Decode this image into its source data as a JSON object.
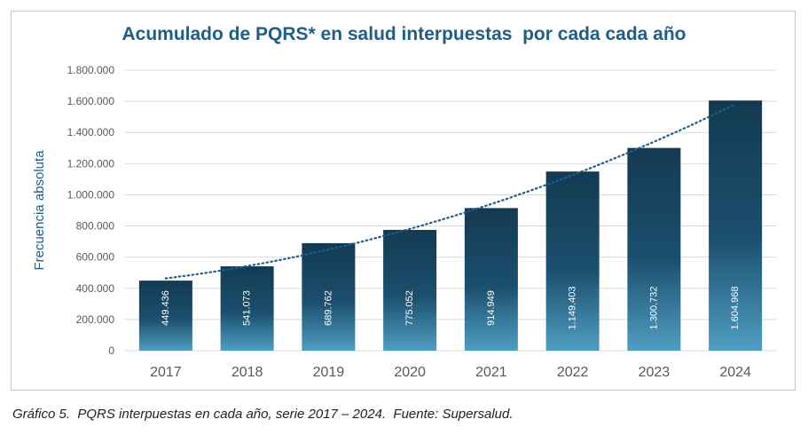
{
  "chart_data": {
    "type": "bar",
    "title": "Acumulado de PQRS* en salud interpuestas  por cada cada año",
    "xlabel": "",
    "ylabel": "Frecuencia absoluta",
    "categories": [
      "2017",
      "2018",
      "2019",
      "2020",
      "2021",
      "2022",
      "2023",
      "2024"
    ],
    "values": [
      449436,
      541073,
      689762,
      775052,
      914949,
      1149403,
      1300732,
      1604968
    ],
    "data_labels": [
      "449.436",
      "541.073",
      "689.762",
      "775.052",
      "914.949",
      "1.149.403",
      "1.300.732",
      "1.604.968"
    ],
    "ylim": [
      0,
      1800000
    ],
    "yticks": [
      0,
      200000,
      400000,
      600000,
      800000,
      1000000,
      1200000,
      1400000,
      1600000,
      1800000
    ],
    "ytick_labels": [
      "0",
      "200.000",
      "400.000",
      "600.000",
      "800.000",
      "1.000.000",
      "1.200.000",
      "1.400.000",
      "1.600.000",
      "1.800.000"
    ],
    "trendline": "polynomial dotted",
    "grid": true,
    "legend": "none",
    "colors": {
      "bar_top": "#143a52",
      "bar_bottom": "#4f9ec2",
      "title": "#1f5e86",
      "ylabel": "#1f5e86",
      "trend": "#1f5e86",
      "grid": "#d9d9d9",
      "tick_text": "#595959"
    }
  },
  "caption": "Gráfico 5.  PQRS interpuestas en cada año, serie 2017 – 2024.  Fuente: Supersalud."
}
